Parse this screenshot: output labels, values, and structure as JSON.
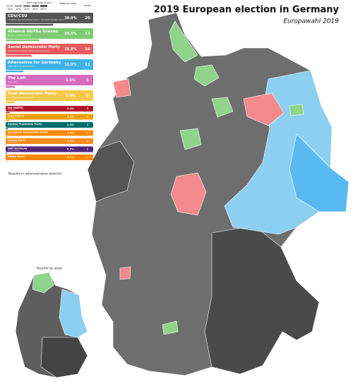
{
  "header": {
    "title": "2019 European election in Germany",
    "subtitle": "Europawahl 2019"
  },
  "legend": {
    "vote_share_label": "Winning vote share",
    "scale_ticks": [
      "10%",
      "20%",
      "30%",
      "40%",
      "50%+"
    ],
    "national_vote_label": "National vote",
    "seats_label": "Seats",
    "parties": [
      {
        "name": "CDU/CSU",
        "subname": "Christlich Demokratische Union / Christlich-Soziale Union",
        "color": "#555555",
        "vote": 28.9,
        "vote_label": "28.9%",
        "seats": 29
      },
      {
        "name": "Alliance 90/The Greens",
        "subname": "Bündnis 90/Die Grünen",
        "color": "#7dcc72",
        "vote": 20.5,
        "vote_label": "20.5%",
        "seats": 21
      },
      {
        "name": "Social Democratic Party",
        "subname": "Sozialdemokratische Partei Deutschlands",
        "color": "#e8595d",
        "vote": 15.8,
        "vote_label": "15.8%",
        "seats": 16
      },
      {
        "name": "Alternative for Germany",
        "subname": "Alternative für Deutschland",
        "color": "#3fb3e8",
        "vote": 11.0,
        "vote_label": "11.0%",
        "seats": 11
      },
      {
        "name": "The Left",
        "subname": "Die Linke",
        "color": "#d66cc0",
        "vote": 5.5,
        "vote_label": "5.5%",
        "seats": 5
      },
      {
        "name": "Free Democratic Party",
        "subname": "Freie Demokratische Partei",
        "color": "#f5c84a",
        "vote": 5.4,
        "vote_label": "5.4%",
        "seats": 5
      },
      {
        "name": "Die PARTEI",
        "subname": "Die PARTEI",
        "color": "#b5152b",
        "vote": 2.4,
        "vote_label": "2.4%",
        "seats": 2
      },
      {
        "name": "Free Voters",
        "subname": "Freie Wähler",
        "color": "#f0a000",
        "vote": 2.2,
        "vote_label": "2.2%",
        "seats": 2
      },
      {
        "name": "Animal Protection Party",
        "subname": "Tierschutzpartei",
        "color": "#006c6c",
        "vote": 1.4,
        "vote_label": "1.4%",
        "seats": 1
      },
      {
        "name": "Ecological Democratic Party",
        "subname": "ÖDP",
        "color": "#ff8800",
        "vote": 1.0,
        "vote_label": "1.0%",
        "seats": 1
      },
      {
        "name": "Family Party",
        "subname": "Familien-Partei",
        "color": "#ff8a1a",
        "vote": 0.7,
        "vote_label": "0.7%",
        "seats": 1
      },
      {
        "name": "Volt Germany",
        "subname": "Volt Deutschland",
        "color": "#502379",
        "vote": 0.7,
        "vote_label": "0.7%",
        "seats": 1
      },
      {
        "name": "Pirate Party",
        "subname": "Piratenpartei",
        "color": "#ff8800",
        "vote": 0.7,
        "vote_label": "0.7%",
        "seats": 1
      }
    ],
    "district_note": "Results in administrative districts"
  },
  "inset": {
    "label": "Results by state"
  }
}
